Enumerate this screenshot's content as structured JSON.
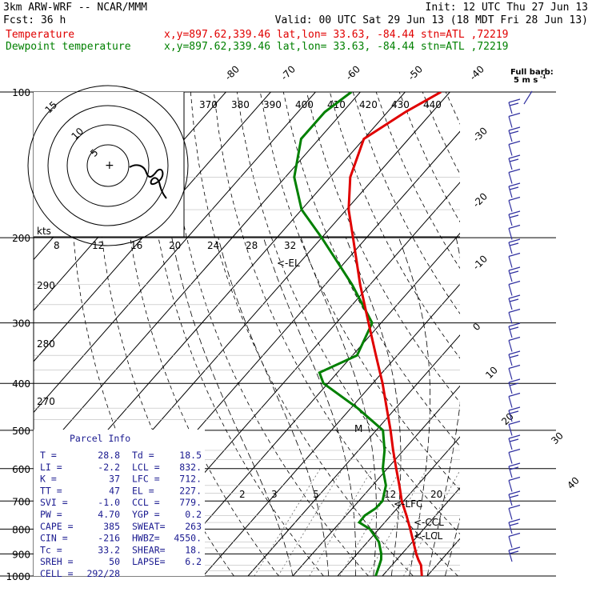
{
  "header": {
    "line1_left": "3km ARW-WRF -- NCAR/MMM",
    "line1_right": "Init: 12 UTC Thu 27 Jun 13",
    "line2_left": "Fcst:   36 h",
    "line2_right": "Valid: 00 UTC Sat 29 Jun 13 (18 MDT Fri 28 Jun 13)",
    "temp_label": "Temperature",
    "temp_info": "x,y=897.62,339.46   lat,lon= 33.63, -84.44   stn=ATL ,72219",
    "dew_label": "Dewpoint temperature",
    "dew_info": "x,y=897.62,339.46   lat,lon= 33.63, -84.44   stn=ATL ,72219"
  },
  "colors": {
    "temperature": "#e00000",
    "dewpoint": "#008000",
    "barbs": "#3030a0",
    "info": "#1a1a90"
  },
  "chart_data": {
    "type": "line",
    "title": "",
    "y_axis": "pressure (hPa), log scale",
    "ylim": [
      1000,
      100
    ],
    "pressure_ticks": [
      100,
      200,
      300,
      400,
      500,
      600,
      700,
      800,
      900,
      1000
    ],
    "isotherm_labels": [
      "-80",
      "-70",
      "-60",
      "-50",
      "-40",
      "-30",
      "-20",
      "-10",
      "0",
      "10",
      "20",
      "30",
      "40"
    ],
    "theta_labels": [
      "370",
      "380",
      "390",
      "400",
      "410",
      "420",
      "430",
      "440"
    ],
    "theta_labels_left": [
      "290",
      "280",
      "270"
    ],
    "mixing_ratio_labels": [
      "2",
      "3",
      "5",
      "12",
      "20"
    ],
    "hodograph_rings": [
      "5",
      "10",
      "15"
    ],
    "hodograph_speed_label": "kts",
    "hodograph_scale": [
      "8",
      "12",
      "16",
      "20",
      "24",
      "28",
      "32"
    ],
    "series": [
      {
        "name": "Temperature",
        "pressure": [
          1000,
          950,
          925,
          900,
          850,
          800,
          750,
          700,
          650,
          600,
          550,
          500,
          450,
          400,
          350,
          300,
          250,
          200,
          175,
          150,
          125,
          110,
          100
        ],
        "values": [
          28.8,
          26.5,
          24.8,
          23.2,
          20.2,
          17.0,
          13.5,
          9.6,
          6.0,
          2.0,
          -2.3,
          -6.8,
          -12.0,
          -17.8,
          -24.8,
          -32.8,
          -42.2,
          -53.0,
          -59.5,
          -65.5,
          -70.0,
          -66.0,
          -62.0
        ]
      },
      {
        "name": "Dewpoint temperature",
        "pressure": [
          1000,
          950,
          925,
          900,
          850,
          800,
          775,
          750,
          725,
          700,
          650,
          600,
          550,
          500,
          450,
          400,
          380,
          350,
          300,
          250,
          200,
          175,
          150,
          125,
          110,
          100
        ],
        "values": [
          18.5,
          17.2,
          16.5,
          15.4,
          12.5,
          8.0,
          4.3,
          4.2,
          5.2,
          5.3,
          3.0,
          -1.0,
          -4.2,
          -8.5,
          -18.5,
          -31.0,
          -34.0,
          -29.0,
          -32.0,
          -44.0,
          -60.0,
          -70.0,
          -78.0,
          -84.0,
          -84.0,
          -82.0
        ]
      }
    ],
    "annotations": [
      "<-EL",
      "<-LFC",
      "<-CCL",
      "<-LCL",
      "M"
    ],
    "full_barb_label_1": "Full barb:",
    "full_barb_label_2": "5 m s",
    "full_barb_exp": "-1"
  },
  "parcel_info": {
    "title": "Parcel Info",
    "rows": [
      [
        "T  =",
        "28.8",
        "Td =",
        "18.5"
      ],
      [
        "LI =",
        "-2.2",
        "LCL =",
        "832."
      ],
      [
        "K  =",
        "37",
        "LFC =",
        "712."
      ],
      [
        "TT =",
        "47",
        "EL  =",
        "227."
      ],
      [
        "SVI =",
        "-1.0",
        "CCL =",
        "779."
      ],
      [
        "PW =",
        "4.70",
        "YGP =",
        "0.2"
      ],
      [
        "CAPE =",
        "385",
        "SWEAT=",
        "263"
      ],
      [
        "CIN =",
        "-216",
        "HWBZ=",
        "4550."
      ],
      [
        "Tc =",
        "33.2",
        "SHEAR=",
        "18."
      ],
      [
        "SREH =",
        "50",
        "LAPSE=",
        "6.2"
      ],
      [
        "CELL =",
        "292/28",
        "",
        ""
      ]
    ]
  }
}
